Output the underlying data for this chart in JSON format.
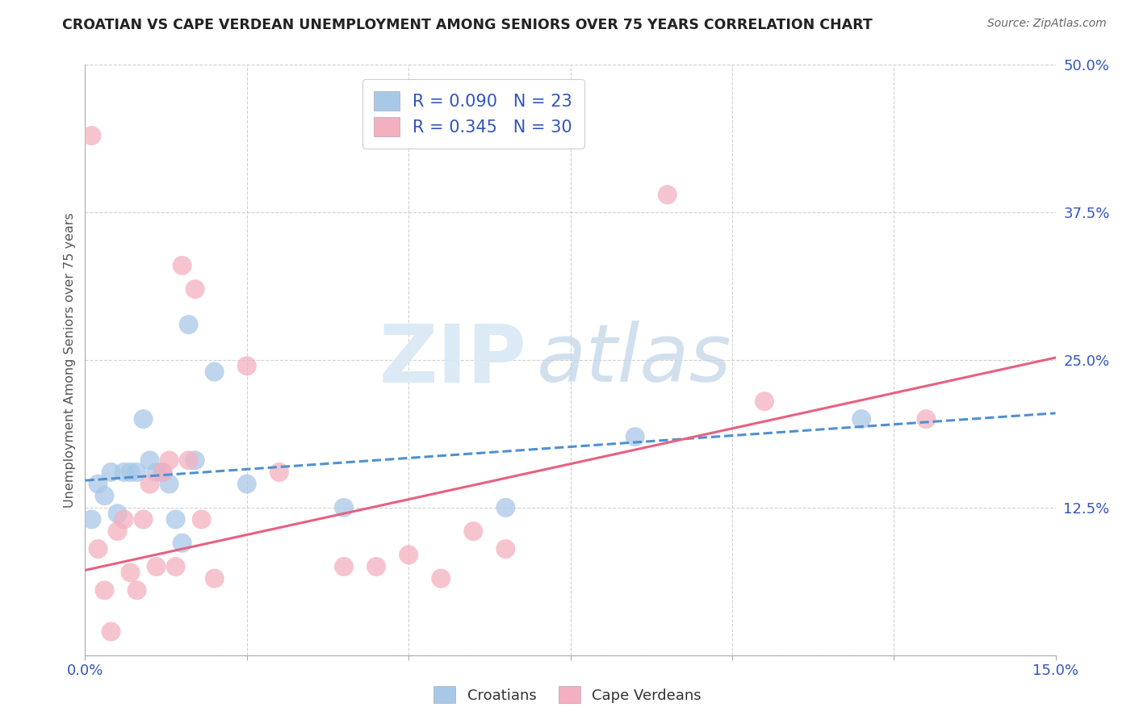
{
  "title": "CROATIAN VS CAPE VERDEAN UNEMPLOYMENT AMONG SENIORS OVER 75 YEARS CORRELATION CHART",
  "source": "Source: ZipAtlas.com",
  "xlabel": "",
  "ylabel": "Unemployment Among Seniors over 75 years",
  "xlim": [
    0.0,
    0.15
  ],
  "ylim": [
    0.0,
    0.5
  ],
  "xticks": [
    0.0,
    0.025,
    0.05,
    0.075,
    0.1,
    0.125,
    0.15
  ],
  "xticklabels": [
    "0.0%",
    "",
    "",
    "",
    "",
    "",
    "15.0%"
  ],
  "yticks": [
    0.0,
    0.125,
    0.25,
    0.375,
    0.5
  ],
  "yticklabels": [
    "",
    "12.5%",
    "25.0%",
    "37.5%",
    "50.0%"
  ],
  "croatian_color": "#a8c8e8",
  "capeverdean_color": "#f4b0c0",
  "trendline_croatian_color": "#5090d0",
  "trendline_capeverdean_color": "#e86080",
  "croatian_R": 0.09,
  "croatian_N": 23,
  "capeverdean_R": 0.345,
  "capeverdean_N": 30,
  "watermark_zip": "ZIP",
  "watermark_atlas": "atlas",
  "background_color": "#ffffff",
  "croatian_x": [
    0.001,
    0.002,
    0.003,
    0.004,
    0.005,
    0.006,
    0.007,
    0.008,
    0.009,
    0.01,
    0.011,
    0.012,
    0.013,
    0.014,
    0.015,
    0.016,
    0.017,
    0.02,
    0.025,
    0.04,
    0.065,
    0.085,
    0.12
  ],
  "croatian_y": [
    0.115,
    0.145,
    0.135,
    0.155,
    0.12,
    0.155,
    0.155,
    0.155,
    0.2,
    0.165,
    0.155,
    0.155,
    0.145,
    0.115,
    0.095,
    0.28,
    0.165,
    0.24,
    0.145,
    0.125,
    0.125,
    0.185,
    0.2
  ],
  "capeverdean_x": [
    0.001,
    0.002,
    0.003,
    0.004,
    0.005,
    0.006,
    0.007,
    0.008,
    0.009,
    0.01,
    0.011,
    0.012,
    0.013,
    0.014,
    0.015,
    0.016,
    0.017,
    0.018,
    0.02,
    0.025,
    0.03,
    0.04,
    0.045,
    0.05,
    0.055,
    0.06,
    0.065,
    0.09,
    0.105,
    0.13
  ],
  "capeverdean_y": [
    0.44,
    0.09,
    0.055,
    0.02,
    0.105,
    0.115,
    0.07,
    0.055,
    0.115,
    0.145,
    0.075,
    0.155,
    0.165,
    0.075,
    0.33,
    0.165,
    0.31,
    0.115,
    0.065,
    0.245,
    0.155,
    0.075,
    0.075,
    0.085,
    0.065,
    0.105,
    0.09,
    0.39,
    0.215,
    0.2
  ],
  "trendline_croatian_x0": 0.0,
  "trendline_croatian_y0": 0.148,
  "trendline_croatian_x1": 0.15,
  "trendline_croatian_y1": 0.205,
  "trendline_capeverdean_x0": 0.0,
  "trendline_capeverdean_y0": 0.072,
  "trendline_capeverdean_x1": 0.15,
  "trendline_capeverdean_y1": 0.252
}
